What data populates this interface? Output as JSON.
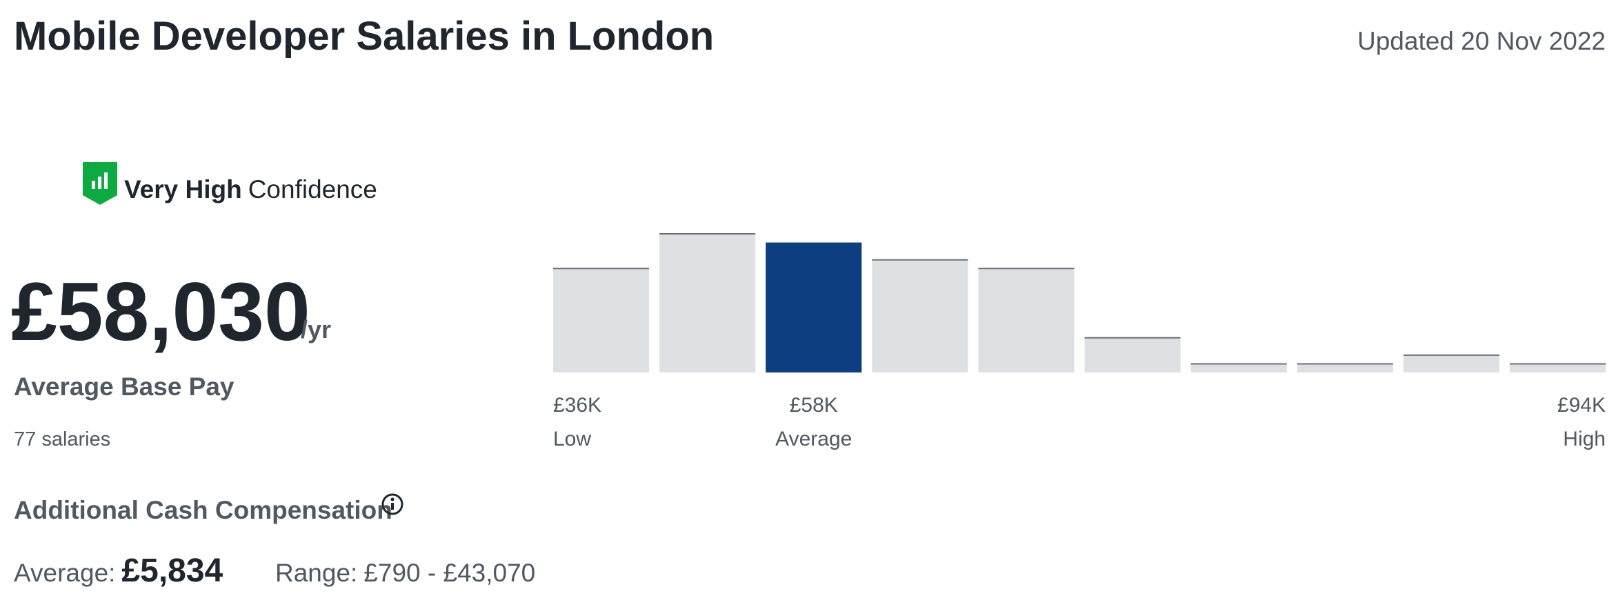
{
  "header": {
    "title": "Mobile Developer Salaries in London",
    "updated": "Updated 20 Nov 2022"
  },
  "confidence": {
    "level": "Very High",
    "label": "Confidence"
  },
  "base_pay": {
    "amount": "£58,030",
    "period": "/yr",
    "label": "Average Base Pay",
    "count": "77 salaries"
  },
  "histogram": {
    "values": [
      12,
      16,
      15,
      13,
      12,
      4,
      1,
      1,
      2,
      1
    ],
    "color": "#dfe0e3",
    "highlight": 2,
    "highlight_color": "#0c3e80",
    "low": {
      "value": "£36K",
      "label": "Low"
    },
    "average": {
      "value": "£58K",
      "label": "Average"
    },
    "high": {
      "value": "£94K",
      "label": "High"
    }
  },
  "additional": {
    "title": "Additional Cash Compensation",
    "average_label": "Average:",
    "average": "£5,834",
    "range_label": "Range:",
    "range": "£790 - £43,070"
  }
}
